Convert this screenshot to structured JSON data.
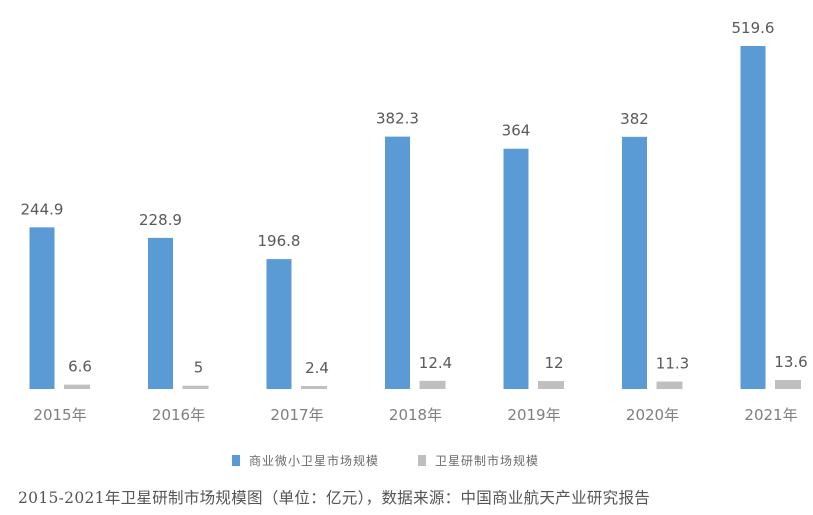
{
  "chart_data": {
    "type": "bar",
    "categories": [
      "2015年",
      "2016年",
      "2017年",
      "2018年",
      "2019年",
      "2020年",
      "2021年"
    ],
    "series": [
      {
        "name": "商业微小卫星市场规模",
        "values": [
          244.9,
          228.9,
          196.8,
          382.3,
          364,
          382,
          519.6
        ],
        "labels": [
          "244.9",
          "228.9",
          "196.8",
          "382.3",
          "364",
          "382",
          "519.6"
        ],
        "color": "#5b9bd5"
      },
      {
        "name": "卫星研制市场规模",
        "values": [
          6.6,
          5,
          2.4,
          12.4,
          12,
          11.3,
          13.6
        ],
        "labels": [
          "6.6",
          "5",
          "2.4",
          "12.4",
          "12",
          "11.3",
          "13.6"
        ],
        "color": "#bfbfbf"
      }
    ],
    "ylim": [
      0,
      519.6
    ],
    "grid": false,
    "legend_position": "bottom"
  },
  "caption": "2015-2021年卫星研制市场规模图（单位：亿元），数据来源：中国商业航天产业研究报告"
}
